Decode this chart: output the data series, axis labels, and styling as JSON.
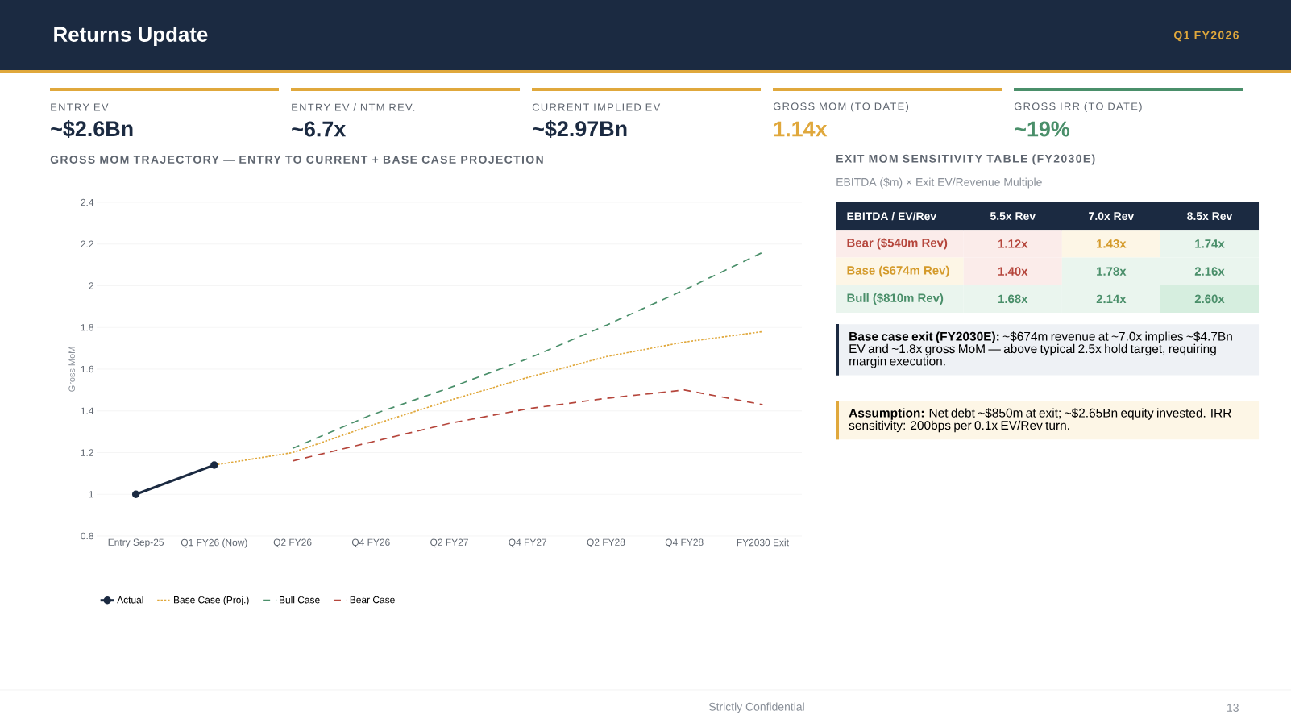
{
  "chart_data": [
    {
      "type": "other",
      "title": "Returns Update",
      "subtitle": "Q1 FY2026",
      "categories": [
        "ENTRY EV",
        "ENTRY EV / NTM REV.",
        "CURRENT IMPLIED EV",
        "GROSS MOM (TO DATE)",
        "GROSS IRR (TO DATE)"
      ],
      "value_labels": [
        "~$2.6Bn",
        "~6.7x",
        "~$2.97Bn",
        "1.14x",
        "~19%"
      ],
      "colors": [
        "#1b2a41",
        "#1b2a41",
        "#1b2a41",
        "#e0a83c",
        "#4a8f6a"
      ],
      "annotations": [
        "Strictly Confidential",
        "13"
      ]
    },
    {
      "type": "line",
      "title": "GROSS MOM TRAJECTORY — ENTRY TO CURRENT + BASE CASE PROJECTION",
      "ylabel": "Gross MoM",
      "categories": [
        "Entry Sep-25",
        "Q1 FY26 (Now)",
        "Q2 FY26",
        "Q4 FY26",
        "Q2 FY27",
        "Q4 FY27",
        "Q2 FY28",
        "Q4 FY28",
        "FY2030 Exit"
      ],
      "series": [
        {
          "name": "Actual",
          "color": "#1b2a41",
          "marker": "circle",
          "line_style": "solid",
          "values": [
            1.0,
            1.14,
            null,
            null,
            null,
            null,
            null,
            null,
            null
          ]
        },
        {
          "name": "Base Case (Proj.)",
          "color": "#e0a83c",
          "marker": "none",
          "line_style": "dotted",
          "values": [
            null,
            1.14,
            1.2,
            1.33,
            1.45,
            1.56,
            1.66,
            1.73,
            1.78
          ]
        },
        {
          "name": "Bull Case",
          "color": "#4a8f6a",
          "marker": "none",
          "line_style": "dashed",
          "values": [
            null,
            null,
            1.22,
            1.38,
            1.51,
            1.65,
            1.81,
            1.98,
            2.16
          ]
        },
        {
          "name": "Bear Case",
          "color": "#b5463c",
          "marker": "none",
          "line_style": "dashed",
          "values": [
            null,
            null,
            1.16,
            1.25,
            1.34,
            1.41,
            1.46,
            1.5,
            1.43
          ]
        }
      ],
      "ylim": [
        0.8,
        2.4
      ],
      "yticks": [
        0.8,
        1,
        1.2,
        1.4,
        1.6,
        1.8,
        2,
        2.2,
        2.4
      ],
      "grid": "y",
      "legend": "bottom"
    },
    {
      "type": "heatmap",
      "title": "EXIT MOM SENSITIVITY TABLE (FY2030E)",
      "subtitle": "EBITDA ($m) × Exit EV/Revenue Multiple",
      "ylabel": "EBITDA / EV/Rev",
      "categories": [
        "5.5x Rev",
        "7.0x Rev",
        "8.5x Rev"
      ],
      "y_categories": [
        "Bear ($540m Rev)",
        "Base ($674m Rev)",
        "Bull ($810m Rev)"
      ],
      "cells": [
        [
          1.12,
          1.43,
          1.74
        ],
        [
          1.4,
          1.78,
          2.16
        ],
        [
          1.68,
          2.14,
          2.6
        ]
      ],
      "cell_labels": [
        [
          "1.12x",
          "1.43x",
          "1.74x"
        ],
        [
          "1.40x",
          "1.78x",
          "2.16x"
        ],
        [
          "1.68x",
          "2.14x",
          "2.60x"
        ]
      ],
      "annotations": [
        "**Base case exit (FY2030E):** ~$674m revenue at ~7.0x implies ~$4.7Bn EV and ~1.8x gross MoM — above typical 2.5x hold target, requiring margin execution.",
        "**Assumption:** Net debt ~$850m at exit; ~$2.65Bn equity invested. IRR sensitivity: 200bps per 0.1x EV/Rev turn."
      ]
    }
  ]
}
